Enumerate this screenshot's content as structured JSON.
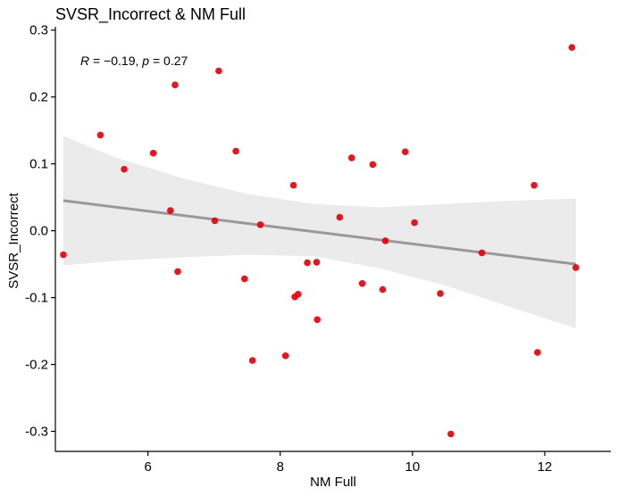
{
  "chart_data": {
    "type": "scatter",
    "title": "SVSR_Incorrect & NM Full",
    "xlabel": "NM Full",
    "ylabel": "SVSR_Incorrect",
    "xlim": [
      4.6,
      13.0
    ],
    "ylim": [
      -0.33,
      0.305
    ],
    "xticks": [
      6,
      8,
      10,
      12
    ],
    "xtick_labels": [
      "6",
      "8",
      "10",
      "12"
    ],
    "yticks": [
      -0.3,
      -0.2,
      -0.1,
      0.0,
      0.1,
      0.2,
      0.3
    ],
    "ytick_labels": [
      "-0.3",
      "-0.2",
      "-0.1",
      "0.0",
      "0.1",
      "0.2",
      "0.3"
    ],
    "grid": false,
    "annotation": {
      "r_symbol": "R",
      "r_part": " = −0.19, ",
      "p_symbol": "p",
      "p_part": " = 0.27"
    },
    "point_color": "#e8000b",
    "trend_color": "#999999",
    "band_color": "#ebebeb",
    "trend_line": {
      "x": [
        4.72,
        12.47
      ],
      "y": [
        0.045,
        -0.05
      ]
    },
    "confidence_band": {
      "x": [
        4.72,
        5.5,
        6.5,
        7.5,
        8.5,
        9.5,
        10.5,
        11.5,
        12.47
      ],
      "upper": [
        0.142,
        0.11,
        0.079,
        0.055,
        0.04,
        0.035,
        0.04,
        0.045,
        0.048
      ],
      "lower": [
        -0.052,
        -0.045,
        -0.04,
        -0.036,
        -0.038,
        -0.056,
        -0.082,
        -0.115,
        -0.146
      ]
    },
    "points": [
      {
        "x": 4.72,
        "y": -0.036
      },
      {
        "x": 5.28,
        "y": 0.143
      },
      {
        "x": 5.64,
        "y": 0.092
      },
      {
        "x": 6.08,
        "y": 0.116
      },
      {
        "x": 6.34,
        "y": 0.03
      },
      {
        "x": 6.41,
        "y": 0.218
      },
      {
        "x": 6.45,
        "y": -0.061
      },
      {
        "x": 7.01,
        "y": 0.015
      },
      {
        "x": 7.07,
        "y": 0.239
      },
      {
        "x": 7.33,
        "y": 0.119
      },
      {
        "x": 7.46,
        "y": -0.072
      },
      {
        "x": 7.58,
        "y": -0.194
      },
      {
        "x": 7.7,
        "y": 0.009
      },
      {
        "x": 8.08,
        "y": -0.187
      },
      {
        "x": 8.2,
        "y": 0.068
      },
      {
        "x": 8.22,
        "y": -0.099
      },
      {
        "x": 8.27,
        "y": -0.095
      },
      {
        "x": 8.41,
        "y": -0.048
      },
      {
        "x": 8.55,
        "y": -0.047
      },
      {
        "x": 8.56,
        "y": -0.133
      },
      {
        "x": 8.9,
        "y": 0.02
      },
      {
        "x": 9.08,
        "y": 0.109
      },
      {
        "x": 9.24,
        "y": -0.079
      },
      {
        "x": 9.4,
        "y": 0.099
      },
      {
        "x": 9.55,
        "y": -0.088
      },
      {
        "x": 9.59,
        "y": -0.015
      },
      {
        "x": 9.89,
        "y": 0.118
      },
      {
        "x": 10.03,
        "y": 0.012
      },
      {
        "x": 10.42,
        "y": -0.094
      },
      {
        "x": 10.58,
        "y": -0.304
      },
      {
        "x": 11.05,
        "y": -0.033
      },
      {
        "x": 11.84,
        "y": 0.068
      },
      {
        "x": 11.89,
        "y": -0.182
      },
      {
        "x": 12.41,
        "y": 0.274
      },
      {
        "x": 12.47,
        "y": -0.055
      }
    ]
  }
}
